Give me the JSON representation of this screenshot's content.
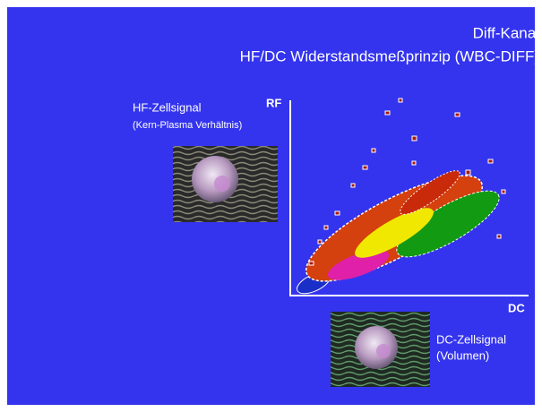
{
  "header": {
    "title": "Diff-Kanal",
    "subtitle": "HF/DC Widerstandsmeßprinzip (WBC-DIFF)"
  },
  "hf_signal": {
    "label": "HF-Zellsignal",
    "note": "(Kern-Plasma Verhältnis)"
  },
  "axes": {
    "y_label": "RF",
    "x_label": "DC"
  },
  "dc_signal": {
    "label": "DC-Zellsignal",
    "note": "(Volumen)"
  }
}
